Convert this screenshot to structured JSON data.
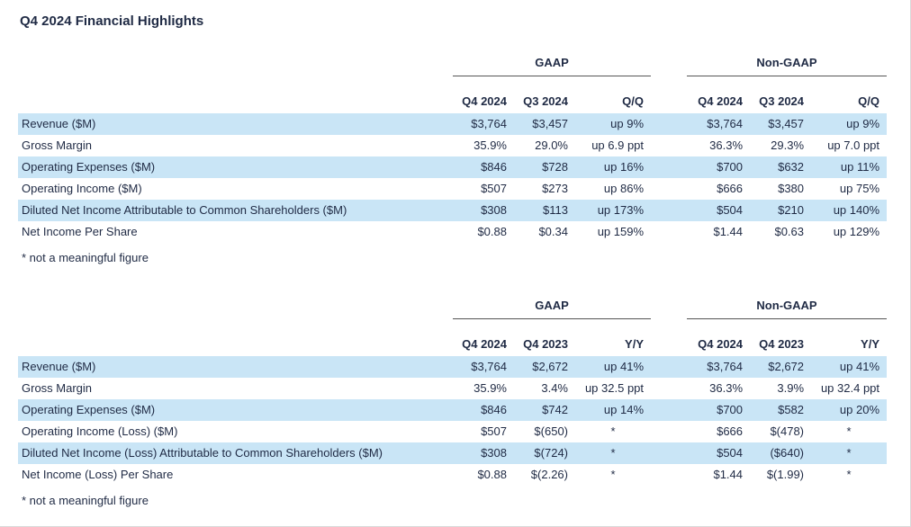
{
  "page": {
    "title": "Q4 2024 Financial Highlights"
  },
  "colors": {
    "stripe": "#c9e5f6",
    "text": "#1f2a44"
  },
  "tables": [
    {
      "groups": {
        "gaap": "GAAP",
        "nongaap": "Non-GAAP"
      },
      "columns": [
        "Q4 2024",
        "Q3 2024",
        "Q/Q",
        "Q4 2024",
        "Q3 2024",
        "Q/Q"
      ],
      "rows": [
        {
          "label": "Revenue ($M)",
          "cells": [
            "$3,764",
            "$3,457",
            "up 9%",
            "$3,764",
            "$3,457",
            "up 9%"
          ]
        },
        {
          "label": "Gross Margin",
          "cells": [
            "35.9%",
            "29.0%",
            "up 6.9 ppt",
            "36.3%",
            "29.3%",
            "up 7.0 ppt"
          ]
        },
        {
          "label": "Operating Expenses ($M)",
          "cells": [
            "$846",
            "$728",
            "up 16%",
            "$700",
            "$632",
            "up 11%"
          ]
        },
        {
          "label": "Operating Income ($M)",
          "cells": [
            "$507",
            "$273",
            "up 86%",
            "$666",
            "$380",
            "up 75%"
          ]
        },
        {
          "label": "Diluted Net Income Attributable to Common Shareholders ($M)",
          "cells": [
            "$308",
            "$113",
            "up 173%",
            "$504",
            "$210",
            "up 140%"
          ]
        },
        {
          "label": "Net Income Per Share",
          "cells": [
            "$0.88",
            "$0.34",
            "up 159%",
            "$1.44",
            "$0.63",
            "up 129%"
          ]
        }
      ],
      "footnote": "* not a meaningful figure"
    },
    {
      "groups": {
        "gaap": "GAAP",
        "nongaap": "Non-GAAP"
      },
      "columns": [
        "Q4 2024",
        "Q4 2023",
        "Y/Y",
        "Q4 2024",
        "Q4 2023",
        "Y/Y"
      ],
      "rows": [
        {
          "label": "Revenue ($M)",
          "cells": [
            "$3,764",
            "$2,672",
            "up 41%",
            "$3,764",
            "$2,672",
            "up 41%"
          ]
        },
        {
          "label": "Gross Margin",
          "cells": [
            "35.9%",
            "3.4%",
            "up 32.5 ppt",
            "36.3%",
            "3.9%",
            "up 32.4 ppt"
          ]
        },
        {
          "label": "Operating Expenses ($M)",
          "cells": [
            "$846",
            "$742",
            "up 14%",
            "$700",
            "$582",
            "up 20%"
          ]
        },
        {
          "label": "Operating Income (Loss) ($M)",
          "cells": [
            "$507",
            "$(650)",
            "*",
            "$666",
            "$(478)",
            "*"
          ]
        },
        {
          "label": "Diluted Net Income (Loss) Attributable to Common Shareholders ($M)",
          "cells": [
            "$308",
            "$(724)",
            "*",
            "$504",
            "($640)",
            "*"
          ]
        },
        {
          "label": "Net Income (Loss) Per Share",
          "cells": [
            "$0.88",
            "$(2.26)",
            "*",
            "$1.44",
            "$(1.99)",
            "*"
          ]
        }
      ],
      "footnote": "* not a meaningful figure"
    }
  ]
}
